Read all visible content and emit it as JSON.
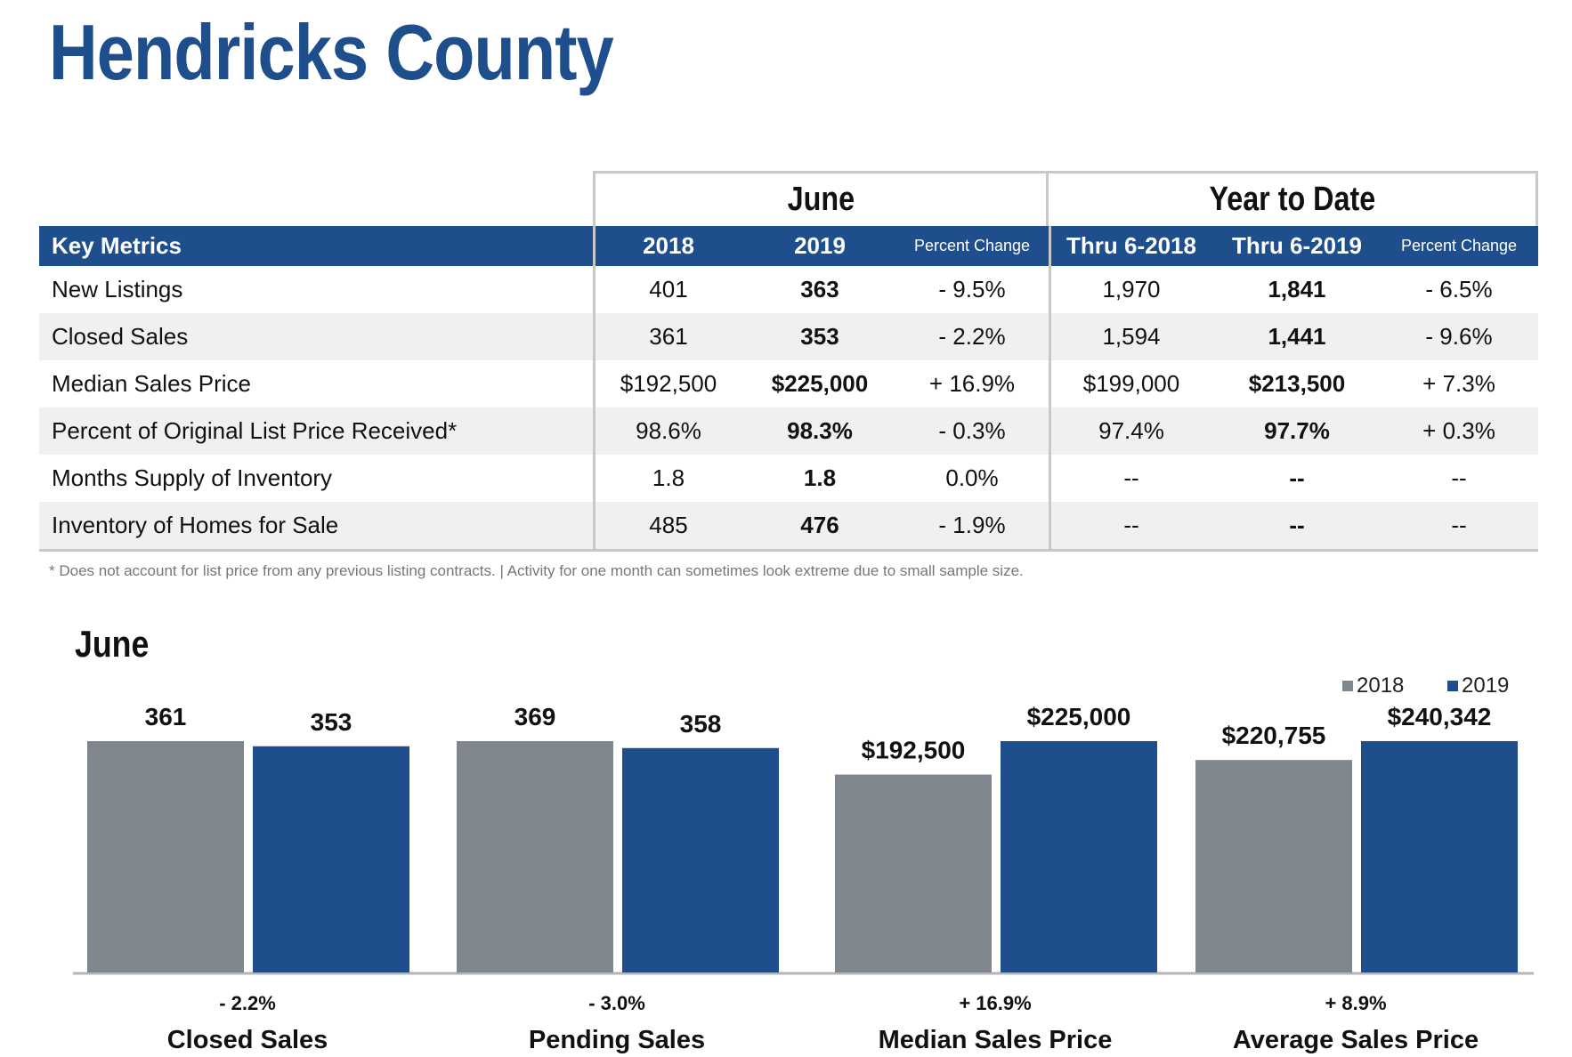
{
  "title": "Hendricks County",
  "table": {
    "group_june": "June",
    "group_ytd": "Year to Date",
    "headers": [
      "Key Metrics",
      "2018",
      "2019",
      "Percent Change",
      "Thru 6-2018",
      "Thru 6-2019",
      "Percent Change"
    ],
    "rows": [
      {
        "metric": "New Listings",
        "v2018": "401",
        "v2019": "363",
        "pct": "- 9.5%",
        "ytd2018": "1,970",
        "ytd2019": "1,841",
        "ytd_pct": "- 6.5%"
      },
      {
        "metric": "Closed Sales",
        "v2018": "361",
        "v2019": "353",
        "pct": "- 2.2%",
        "ytd2018": "1,594",
        "ytd2019": "1,441",
        "ytd_pct": "- 9.6%"
      },
      {
        "metric": "Median Sales Price",
        "v2018": "$192,500",
        "v2019": "$225,000",
        "pct": "+ 16.9%",
        "ytd2018": "$199,000",
        "ytd2019": "$213,500",
        "ytd_pct": "+ 7.3%"
      },
      {
        "metric": "Percent of Original List Price Received*",
        "v2018": "98.6%",
        "v2019": "98.3%",
        "pct": "- 0.3%",
        "ytd2018": "97.4%",
        "ytd2019": "97.7%",
        "ytd_pct": "+ 0.3%"
      },
      {
        "metric": "Months Supply of Inventory",
        "v2018": "1.8",
        "v2019": "1.8",
        "pct": "0.0%",
        "ytd2018": "--",
        "ytd2019": "--",
        "ytd_pct": "--"
      },
      {
        "metric": "Inventory of Homes for Sale",
        "v2018": "485",
        "v2019": "476",
        "pct": "- 1.9%",
        "ytd2018": "--",
        "ytd2019": "--",
        "ytd_pct": "--"
      }
    ]
  },
  "footnote": "* Does not account for list price from any previous listing contracts.  |  Activity for one month can sometimes look extreme due to small sample size.",
  "colors": {
    "brand": "#1f4e8c",
    "gray": "#80868e"
  },
  "chart_data": {
    "type": "bar",
    "title": "June",
    "legend_position": "top-right",
    "series": [
      {
        "name": "2018",
        "color": "#80868e"
      },
      {
        "name": "2019",
        "color": "#1f4e8c"
      }
    ],
    "groups": [
      {
        "category": "Closed Sales",
        "pct": "- 2.2%",
        "values": [
          361,
          353
        ],
        "labels": [
          "361",
          "353"
        ]
      },
      {
        "category": "Pending Sales",
        "pct": "- 3.0%",
        "values": [
          369,
          358
        ],
        "labels": [
          "369",
          "358"
        ]
      },
      {
        "category": "Median Sales Price",
        "pct": "+ 16.9%",
        "values": [
          192500,
          225000
        ],
        "labels": [
          "$192,500",
          "$225,000"
        ]
      },
      {
        "category": "Average Sales Price",
        "pct": "+ 8.9%",
        "values": [
          220755,
          240342
        ],
        "labels": [
          "$220,755",
          "$240,342"
        ]
      }
    ]
  }
}
